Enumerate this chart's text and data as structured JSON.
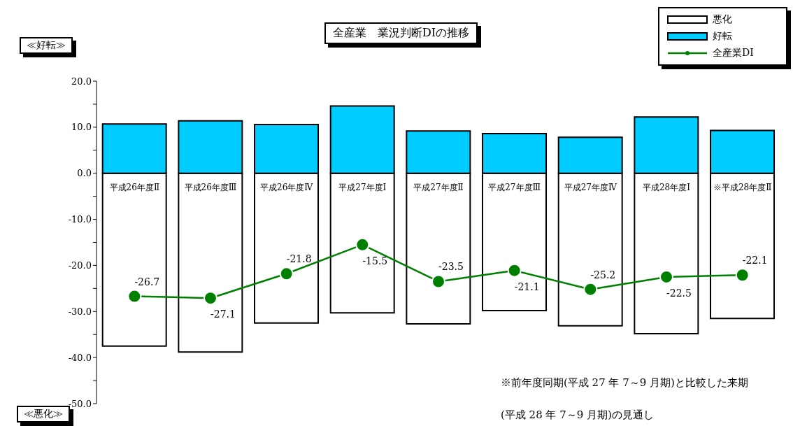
{
  "chart_data": {
    "type": "bar",
    "title": "全産業　業況判断DIの推移",
    "stacked": true,
    "categories": [
      "平成26年度Ⅱ",
      "平成26年度Ⅲ",
      "平成26年度Ⅳ",
      "平成27年度Ⅰ",
      "平成27年度Ⅱ",
      "平成27年度Ⅲ",
      "平成27年度Ⅳ",
      "平成28年度Ⅰ",
      "※平成28年度Ⅱ"
    ],
    "series": [
      {
        "name": "悪化",
        "color": "#ffffff",
        "values": [
          -37.5,
          -38.8,
          -32.5,
          -30.3,
          -32.7,
          -29.8,
          -33.1,
          -34.8,
          -31.5
        ]
      },
      {
        "name": "好転",
        "color": "#00ccff",
        "values": [
          10.7,
          11.4,
          10.6,
          14.6,
          9.2,
          8.6,
          7.8,
          12.2,
          9.3
        ]
      },
      {
        "name": "全産業DI",
        "type": "line",
        "color": "#008000",
        "marker": "circle",
        "values": [
          -26.7,
          -27.1,
          -21.8,
          -15.5,
          -23.5,
          -21.1,
          -25.2,
          -22.5,
          -22.1
        ],
        "value_labels": [
          "-26.7",
          "-27.1",
          "-21.8",
          "-15.5",
          "-23.5",
          "-21.1",
          "-25.2",
          "-22.5",
          "-22.1"
        ]
      }
    ],
    "ylim": [
      -50,
      20
    ],
    "yticks": [
      {
        "value": -50,
        "label": "-50.0"
      },
      {
        "value": -45,
        "label": null
      },
      {
        "value": -40,
        "label": "-40.0"
      },
      {
        "value": -35,
        "label": null
      },
      {
        "value": -30,
        "label": "-30.0"
      },
      {
        "value": -25,
        "label": null
      },
      {
        "value": -20,
        "label": "-20.0"
      },
      {
        "value": -15,
        "label": null
      },
      {
        "value": -10,
        "label": "-10.0"
      },
      {
        "value": -5,
        "label": null
      },
      {
        "value": 0,
        "label": "0.0"
      },
      {
        "value": 5,
        "label": null
      },
      {
        "value": 10,
        "label": "10.0"
      },
      {
        "value": 15,
        "label": null
      },
      {
        "value": 20,
        "label": "20.0"
      }
    ],
    "grid": false,
    "legend": "top right",
    "annotations": [
      "≪好転≫",
      "≪悪化≫",
      "※前年度同期(平成 27 年 7～9 月期)と比較した来期",
      "(平成 28 年 7～9 月期)の見通し"
    ]
  }
}
